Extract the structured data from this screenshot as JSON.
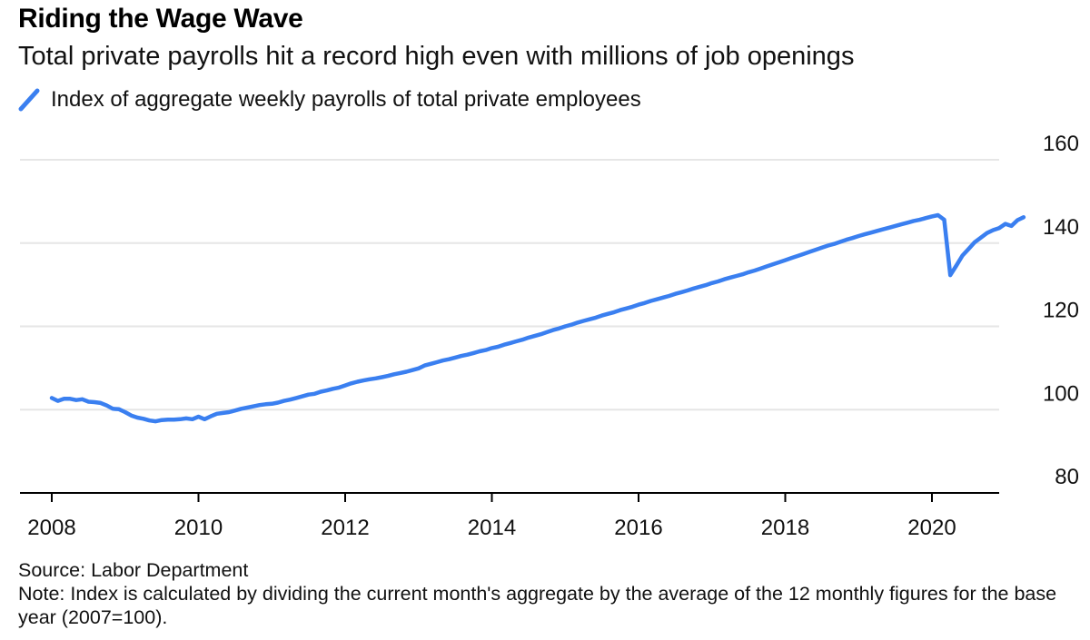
{
  "header": {
    "title": "Riding the Wage Wave",
    "subtitle": "Total private payrolls hit a record high even with millions of job openings"
  },
  "legend": {
    "label": "Index of aggregate weekly payrolls of total private employees"
  },
  "footer": {
    "source": "Source: Labor Department",
    "note": "Note: Index is calculated by dividing the current month's aggregate by the average of the 12 monthly figures for the base year (2007=100)."
  },
  "colors": {
    "line": "#3a7ff0",
    "grid": "#e6e6e6",
    "axis": "#000000"
  },
  "chart_data": {
    "type": "line",
    "xlabel": "",
    "ylabel": "",
    "ylim": [
      80,
      160
    ],
    "xlim": [
      "2008-01",
      "2021-06"
    ],
    "yticks": [
      80,
      100,
      120,
      140,
      160
    ],
    "xticks": [
      "2008",
      "2010",
      "2012",
      "2014",
      "2016",
      "2018",
      "2020"
    ],
    "y_axis_position": "right",
    "grid": "horizontal",
    "legend_position": "top-left",
    "series": [
      {
        "name": "Index of aggregate weekly payrolls of total private employees",
        "points": [
          [
            "2008-01",
            102.8
          ],
          [
            "2008-02",
            102.1
          ],
          [
            "2008-03",
            102.6
          ],
          [
            "2008-04",
            102.6
          ],
          [
            "2008-05",
            102.3
          ],
          [
            "2008-06",
            102.5
          ],
          [
            "2008-07",
            101.9
          ],
          [
            "2008-08",
            101.8
          ],
          [
            "2008-09",
            101.6
          ],
          [
            "2008-10",
            101.0
          ],
          [
            "2008-11",
            100.2
          ],
          [
            "2008-12",
            100.1
          ],
          [
            "2009-01",
            99.4
          ],
          [
            "2009-02",
            98.6
          ],
          [
            "2009-03",
            98.1
          ],
          [
            "2009-04",
            97.8
          ],
          [
            "2009-05",
            97.4
          ],
          [
            "2009-06",
            97.2
          ],
          [
            "2009-07",
            97.5
          ],
          [
            "2009-08",
            97.6
          ],
          [
            "2009-09",
            97.6
          ],
          [
            "2009-10",
            97.7
          ],
          [
            "2009-11",
            97.9
          ],
          [
            "2009-12",
            97.7
          ],
          [
            "2010-01",
            98.3
          ],
          [
            "2010-02",
            97.7
          ],
          [
            "2010-03",
            98.4
          ],
          [
            "2010-04",
            99.0
          ],
          [
            "2010-05",
            99.2
          ],
          [
            "2010-06",
            99.4
          ],
          [
            "2010-07",
            99.8
          ],
          [
            "2010-08",
            100.2
          ],
          [
            "2010-09",
            100.5
          ],
          [
            "2010-10",
            100.8
          ],
          [
            "2010-11",
            101.1
          ],
          [
            "2010-12",
            101.3
          ],
          [
            "2011-01",
            101.4
          ],
          [
            "2011-02",
            101.7
          ],
          [
            "2011-03",
            102.1
          ],
          [
            "2011-04",
            102.4
          ],
          [
            "2011-05",
            102.8
          ],
          [
            "2011-06",
            103.2
          ],
          [
            "2011-07",
            103.6
          ],
          [
            "2011-08",
            103.8
          ],
          [
            "2011-09",
            104.3
          ],
          [
            "2011-10",
            104.6
          ],
          [
            "2011-11",
            105.0
          ],
          [
            "2011-12",
            105.3
          ],
          [
            "2012-01",
            105.8
          ],
          [
            "2012-02",
            106.3
          ],
          [
            "2012-03",
            106.7
          ],
          [
            "2012-04",
            107.0
          ],
          [
            "2012-05",
            107.3
          ],
          [
            "2012-06",
            107.5
          ],
          [
            "2012-07",
            107.8
          ],
          [
            "2012-08",
            108.1
          ],
          [
            "2012-09",
            108.5
          ],
          [
            "2012-10",
            108.8
          ],
          [
            "2012-11",
            109.1
          ],
          [
            "2012-12",
            109.5
          ],
          [
            "2013-01",
            109.9
          ],
          [
            "2013-02",
            110.6
          ],
          [
            "2013-03",
            111.0
          ],
          [
            "2013-04",
            111.4
          ],
          [
            "2013-05",
            111.8
          ],
          [
            "2013-06",
            112.1
          ],
          [
            "2013-07",
            112.5
          ],
          [
            "2013-08",
            112.9
          ],
          [
            "2013-09",
            113.2
          ],
          [
            "2013-10",
            113.6
          ],
          [
            "2013-11",
            114.0
          ],
          [
            "2013-12",
            114.3
          ],
          [
            "2014-01",
            114.8
          ],
          [
            "2014-02",
            115.1
          ],
          [
            "2014-03",
            115.6
          ],
          [
            "2014-04",
            116.0
          ],
          [
            "2014-05",
            116.4
          ],
          [
            "2014-06",
            116.8
          ],
          [
            "2014-07",
            117.3
          ],
          [
            "2014-08",
            117.7
          ],
          [
            "2014-09",
            118.1
          ],
          [
            "2014-10",
            118.6
          ],
          [
            "2014-11",
            119.1
          ],
          [
            "2014-12",
            119.5
          ],
          [
            "2015-01",
            120.0
          ],
          [
            "2015-02",
            120.4
          ],
          [
            "2015-03",
            120.9
          ],
          [
            "2015-04",
            121.3
          ],
          [
            "2015-05",
            121.7
          ],
          [
            "2015-06",
            122.1
          ],
          [
            "2015-07",
            122.6
          ],
          [
            "2015-08",
            123.0
          ],
          [
            "2015-09",
            123.4
          ],
          [
            "2015-10",
            123.9
          ],
          [
            "2015-11",
            124.3
          ],
          [
            "2015-12",
            124.7
          ],
          [
            "2016-01",
            125.2
          ],
          [
            "2016-02",
            125.6
          ],
          [
            "2016-03",
            126.1
          ],
          [
            "2016-04",
            126.5
          ],
          [
            "2016-05",
            126.9
          ],
          [
            "2016-06",
            127.3
          ],
          [
            "2016-07",
            127.8
          ],
          [
            "2016-08",
            128.2
          ],
          [
            "2016-09",
            128.6
          ],
          [
            "2016-10",
            129.1
          ],
          [
            "2016-11",
            129.5
          ],
          [
            "2016-12",
            129.9
          ],
          [
            "2017-01",
            130.4
          ],
          [
            "2017-02",
            130.8
          ],
          [
            "2017-03",
            131.3
          ],
          [
            "2017-04",
            131.7
          ],
          [
            "2017-05",
            132.1
          ],
          [
            "2017-06",
            132.5
          ],
          [
            "2017-07",
            133.0
          ],
          [
            "2017-08",
            133.4
          ],
          [
            "2017-09",
            133.9
          ],
          [
            "2017-10",
            134.4
          ],
          [
            "2017-11",
            134.9
          ],
          [
            "2017-12",
            135.4
          ],
          [
            "2018-01",
            135.9
          ],
          [
            "2018-02",
            136.4
          ],
          [
            "2018-03",
            136.9
          ],
          [
            "2018-04",
            137.4
          ],
          [
            "2018-05",
            137.9
          ],
          [
            "2018-06",
            138.4
          ],
          [
            "2018-07",
            138.9
          ],
          [
            "2018-08",
            139.4
          ],
          [
            "2018-09",
            139.8
          ],
          [
            "2018-10",
            140.3
          ],
          [
            "2018-11",
            140.8
          ],
          [
            "2018-12",
            141.2
          ],
          [
            "2019-01",
            141.7
          ],
          [
            "2019-02",
            142.1
          ],
          [
            "2019-03",
            142.5
          ],
          [
            "2019-04",
            142.9
          ],
          [
            "2019-05",
            143.3
          ],
          [
            "2019-06",
            143.7
          ],
          [
            "2019-07",
            144.1
          ],
          [
            "2019-08",
            144.5
          ],
          [
            "2019-09",
            144.9
          ],
          [
            "2019-10",
            145.3
          ],
          [
            "2019-11",
            145.6
          ],
          [
            "2019-12",
            146.0
          ],
          [
            "2020-01",
            146.4
          ],
          [
            "2020-02",
            146.7
          ],
          [
            "2020-03",
            145.6
          ],
          [
            "2020-04",
            132.3
          ],
          [
            "2020-05",
            134.6
          ],
          [
            "2020-06",
            137.0
          ],
          [
            "2020-07",
            138.6
          ],
          [
            "2020-08",
            140.2
          ],
          [
            "2020-09",
            141.3
          ],
          [
            "2020-10",
            142.4
          ],
          [
            "2020-11",
            143.1
          ],
          [
            "2020-12",
            143.6
          ],
          [
            "2021-01",
            144.6
          ],
          [
            "2021-02",
            144.1
          ],
          [
            "2021-03",
            145.5
          ],
          [
            "2021-04",
            146.2
          ]
        ]
      }
    ]
  }
}
